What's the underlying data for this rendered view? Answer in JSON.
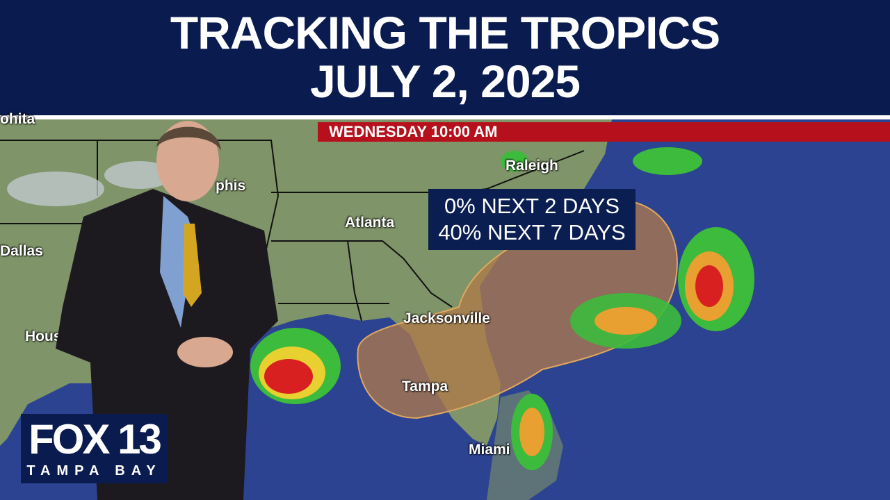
{
  "header": {
    "line1": "TRACKING THE TROPICS",
    "line2": "JULY 2, 2025"
  },
  "timebar": {
    "label": "WEDNESDAY  10:00 AM"
  },
  "probability": {
    "line1": "0% NEXT 2 DAYS",
    "line2": "40% NEXT 7 DAYS"
  },
  "cities": {
    "topleft": "ohita",
    "dallas": "Dallas",
    "houston": "Houst",
    "memphis": "phis",
    "atlanta": "Atlanta",
    "raleigh": "Raleigh",
    "jacksonville": "Jacksonville",
    "tampa": "Tampa",
    "miami": "Miami"
  },
  "logo": {
    "brand": "FOX 13",
    "subtitle": "TAMPA BAY"
  },
  "colors": {
    "header": "#0a1b4f",
    "timebar": "#b5101b",
    "ocean": "#2a3f8e",
    "land": "#7d9367",
    "cone": "#b07a4a"
  }
}
